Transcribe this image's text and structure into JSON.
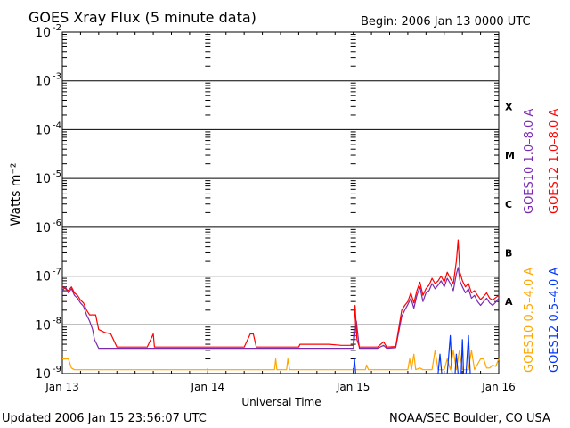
{
  "header": {
    "title": "GOES Xray Flux (5 minute data)",
    "begin": "Begin:  2006 Jan 13 0000 UTC"
  },
  "footer": {
    "updated": "Updated 2006 Jan 15 23:56:07 UTC",
    "credit": "NOAA/SEC Boulder, CO USA"
  },
  "chart_data": {
    "type": "line",
    "title": "GOES Xray Flux (5 minute data)",
    "xlabel": "Universal Time",
    "ylabel": "Watts m⁻²",
    "yscale": "log",
    "ylim": [
      1e-09,
      0.01
    ],
    "xlim": [
      0,
      72
    ],
    "x_unit": "hours since 2006 Jan 13 0000 UTC",
    "x_ticks": [
      {
        "x": 0,
        "label": "Jan 13"
      },
      {
        "x": 24,
        "label": "Jan 14"
      },
      {
        "x": 48,
        "label": "Jan 15"
      },
      {
        "x": 72,
        "label": "Jan 16"
      }
    ],
    "y_ticks": [
      {
        "exp": -9,
        "label": "10",
        "sup": "-9"
      },
      {
        "exp": -8,
        "label": "10",
        "sup": "-8"
      },
      {
        "exp": -7,
        "label": "10",
        "sup": "-7"
      },
      {
        "exp": -6,
        "label": "10",
        "sup": "-6"
      },
      {
        "exp": -5,
        "label": "10",
        "sup": "-5"
      },
      {
        "exp": -4,
        "label": "10",
        "sup": "-4"
      },
      {
        "exp": -3,
        "label": "10",
        "sup": "-3"
      },
      {
        "exp": -2,
        "label": "10",
        "sup": "-2"
      }
    ],
    "flare_classes": [
      {
        "label": "X",
        "value": 0.0003
      },
      {
        "label": "M",
        "value": 3e-05
      },
      {
        "label": "C",
        "value": 3e-06
      },
      {
        "label": "B",
        "value": 3e-07
      },
      {
        "label": "A",
        "value": 3e-08
      }
    ],
    "legend": [
      {
        "label": "GOES10 1.0–8.0 A",
        "color": "#7a2ab0"
      },
      {
        "label": "GOES12 1.0–8.0 A",
        "color": "#ff0000"
      },
      {
        "label": "GOES10 0.5–4.0 A",
        "color": "#ffa500"
      },
      {
        "label": "GOES12 0.5–4.0 A",
        "color": "#0033ff"
      }
    ],
    "grid": true,
    "series": [
      {
        "name": "GOES10 1.0–8.0 A",
        "color": "#7a2ab0",
        "points": [
          [
            0,
            5e-08
          ],
          [
            0.5,
            6e-08
          ],
          [
            1,
            4.5e-08
          ],
          [
            1.5,
            5.5e-08
          ],
          [
            2,
            4e-08
          ],
          [
            2.5,
            3.5e-08
          ],
          [
            3,
            2.8e-08
          ],
          [
            3.5,
            2.4e-08
          ],
          [
            4,
            1.6e-08
          ],
          [
            4.5,
            1.2e-08
          ],
          [
            5,
            8e-09
          ],
          [
            5.3,
            5e-09
          ],
          [
            6,
            3.3e-09
          ],
          [
            10,
            3.3e-09
          ],
          [
            15,
            3.3e-09
          ],
          [
            20,
            3.3e-09
          ],
          [
            25,
            3.3e-09
          ],
          [
            30,
            3.3e-09
          ],
          [
            35,
            3.3e-09
          ],
          [
            40,
            3.3e-09
          ],
          [
            45,
            3.3e-09
          ],
          [
            48,
            3.3e-09
          ],
          [
            48.5,
            1.2e-08
          ],
          [
            49,
            3.3e-09
          ],
          [
            52,
            3.3e-09
          ],
          [
            53,
            3.8e-09
          ],
          [
            53.5,
            3.3e-09
          ],
          [
            55,
            3.4e-09
          ],
          [
            56,
            1.5e-08
          ],
          [
            56.5,
            2e-08
          ],
          [
            57,
            2.6e-08
          ],
          [
            57.5,
            3.5e-08
          ],
          [
            58,
            2.2e-08
          ],
          [
            58.5,
            4e-08
          ],
          [
            59,
            6e-08
          ],
          [
            59.5,
            3e-08
          ],
          [
            60,
            4.5e-08
          ],
          [
            60.5,
            5e-08
          ],
          [
            61,
            7e-08
          ],
          [
            61.5,
            5.5e-08
          ],
          [
            62,
            6.5e-08
          ],
          [
            62.5,
            8e-08
          ],
          [
            63,
            6e-08
          ],
          [
            63.5,
            9e-08
          ],
          [
            64,
            7e-08
          ],
          [
            64.5,
            5e-08
          ],
          [
            65,
            1.1e-07
          ],
          [
            65.3,
            1.5e-07
          ],
          [
            65.6,
            8e-08
          ],
          [
            66,
            6e-08
          ],
          [
            66.5,
            4.5e-08
          ],
          [
            67,
            5.5e-08
          ],
          [
            67.5,
            3.5e-08
          ],
          [
            68,
            4e-08
          ],
          [
            68.5,
            3e-08
          ],
          [
            69,
            2.5e-08
          ],
          [
            69.5,
            3e-08
          ],
          [
            70,
            3.5e-08
          ],
          [
            70.5,
            2.8e-08
          ],
          [
            71,
            2.5e-08
          ],
          [
            71.5,
            2.9e-08
          ],
          [
            72,
            3.5e-08
          ]
        ]
      },
      {
        "name": "GOES12 1.0–8.0 A",
        "color": "#ff0000",
        "points": [
          [
            0,
            6e-08
          ],
          [
            0.5,
            5.5e-08
          ],
          [
            1,
            5e-08
          ],
          [
            1.5,
            6e-08
          ],
          [
            2,
            4.5e-08
          ],
          [
            2.5,
            4e-08
          ],
          [
            3,
            3.2e-08
          ],
          [
            3.5,
            2.8e-08
          ],
          [
            4,
            2e-08
          ],
          [
            4.5,
            1.6e-08
          ],
          [
            5,
            1.6e-08
          ],
          [
            5.5,
            1.6e-08
          ],
          [
            6,
            8e-09
          ],
          [
            7,
            7e-09
          ],
          [
            8,
            6.5e-09
          ],
          [
            9,
            3.5e-09
          ],
          [
            14,
            3.5e-09
          ],
          [
            15,
            6.5e-09
          ],
          [
            15.2,
            3.5e-09
          ],
          [
            20,
            3.5e-09
          ],
          [
            25,
            3.5e-09
          ],
          [
            30,
            3.5e-09
          ],
          [
            31,
            6.5e-09
          ],
          [
            31.5,
            6.5e-09
          ],
          [
            32,
            3.5e-09
          ],
          [
            35,
            3.5e-09
          ],
          [
            39,
            3.5e-09
          ],
          [
            39.2,
            4e-09
          ],
          [
            44,
            4e-09
          ],
          [
            46,
            3.8e-09
          ],
          [
            48,
            3.8e-09
          ],
          [
            48.3,
            2.5e-08
          ],
          [
            48.6,
            5e-09
          ],
          [
            49,
            3.5e-09
          ],
          [
            52,
            3.5e-09
          ],
          [
            53,
            4.5e-09
          ],
          [
            53.5,
            3.5e-09
          ],
          [
            55,
            3.6e-09
          ],
          [
            56,
            2e-08
          ],
          [
            56.5,
            2.5e-08
          ],
          [
            57,
            3e-08
          ],
          [
            57.5,
            4.5e-08
          ],
          [
            58,
            2.8e-08
          ],
          [
            58.5,
            5e-08
          ],
          [
            59,
            7.5e-08
          ],
          [
            59.5,
            4e-08
          ],
          [
            60,
            5.5e-08
          ],
          [
            60.5,
            6.5e-08
          ],
          [
            61,
            9e-08
          ],
          [
            61.5,
            7e-08
          ],
          [
            62,
            8e-08
          ],
          [
            62.5,
            1e-07
          ],
          [
            63,
            7.5e-08
          ],
          [
            63.5,
            1.2e-07
          ],
          [
            64,
            9e-08
          ],
          [
            64.5,
            7e-08
          ],
          [
            65,
            2e-07
          ],
          [
            65.3,
            5.5e-07
          ],
          [
            65.6,
            1.2e-07
          ],
          [
            66,
            8e-08
          ],
          [
            66.5,
            6e-08
          ],
          [
            67,
            7e-08
          ],
          [
            67.5,
            4.5e-08
          ],
          [
            68,
            5e-08
          ],
          [
            68.5,
            4e-08
          ],
          [
            69,
            3.3e-08
          ],
          [
            69.5,
            3.8e-08
          ],
          [
            70,
            4.5e-08
          ],
          [
            70.5,
            3.5e-08
          ],
          [
            71,
            3.2e-08
          ],
          [
            71.5,
            3.6e-08
          ],
          [
            72,
            4e-08
          ]
        ]
      },
      {
        "name": "GOES10 0.5–4.0 A",
        "color": "#ffa500",
        "points": [
          [
            0,
            2e-09
          ],
          [
            1,
            2e-09
          ],
          [
            1.5,
            1.3e-09
          ],
          [
            2,
            1.2e-09
          ],
          [
            5,
            1.2e-09
          ],
          [
            10,
            1.2e-09
          ],
          [
            15,
            1.2e-09
          ],
          [
            20,
            1.2e-09
          ],
          [
            24,
            1.2e-09
          ],
          [
            30,
            1.2e-09
          ],
          [
            35,
            1.2e-09
          ],
          [
            35.2,
            2e-09
          ],
          [
            35.4,
            1.2e-09
          ],
          [
            37,
            1.2e-09
          ],
          [
            37.2,
            2e-09
          ],
          [
            37.5,
            1.2e-09
          ],
          [
            40,
            1.2e-09
          ],
          [
            45,
            1.2e-09
          ],
          [
            48,
            1.2e-09
          ],
          [
            50,
            1.2e-09
          ],
          [
            50.2,
            1.5e-09
          ],
          [
            50.5,
            1.2e-09
          ],
          [
            55,
            1.2e-09
          ],
          [
            57,
            1.2e-09
          ],
          [
            57.3,
            2e-09
          ],
          [
            57.6,
            1.2e-09
          ],
          [
            58,
            2.5e-09
          ],
          [
            58.3,
            1.2e-09
          ],
          [
            59,
            1.3e-09
          ],
          [
            59.5,
            1.2e-09
          ],
          [
            61,
            1.2e-09
          ],
          [
            61.5,
            3e-09
          ],
          [
            62,
            1.2e-09
          ],
          [
            63,
            1.2e-09
          ],
          [
            63.5,
            2e-09
          ],
          [
            64,
            1.2e-09
          ],
          [
            64.5,
            3e-09
          ],
          [
            65,
            1.2e-09
          ],
          [
            65.5,
            3e-09
          ],
          [
            66,
            1.2e-09
          ],
          [
            67,
            1.2e-09
          ],
          [
            67.5,
            3e-09
          ],
          [
            68,
            1.2e-09
          ],
          [
            69,
            2e-09
          ],
          [
            69.5,
            2e-09
          ],
          [
            70,
            1.3e-09
          ],
          [
            70.5,
            1.3e-09
          ],
          [
            71,
            1.5e-09
          ],
          [
            71.5,
            1.4e-09
          ],
          [
            72,
            2e-09
          ]
        ]
      },
      {
        "name": "GOES12 0.5–4.0 A",
        "color": "#0033ff",
        "points": [
          [
            48,
            1e-09
          ],
          [
            48.2,
            2e-09
          ],
          [
            48.4,
            1e-09
          ],
          [
            62,
            1e-09
          ],
          [
            62.3,
            2.5e-09
          ],
          [
            62.6,
            1e-09
          ],
          [
            63.5,
            1e-09
          ],
          [
            64,
            6e-09
          ],
          [
            64.3,
            1e-09
          ],
          [
            64.8,
            1e-09
          ],
          [
            65,
            2.5e-09
          ],
          [
            65.3,
            1e-09
          ],
          [
            65.8,
            1e-09
          ],
          [
            66,
            5e-09
          ],
          [
            66.2,
            1e-09
          ],
          [
            66.6,
            1e-09
          ],
          [
            67,
            6e-09
          ],
          [
            67.3,
            1e-09
          ]
        ]
      }
    ]
  }
}
